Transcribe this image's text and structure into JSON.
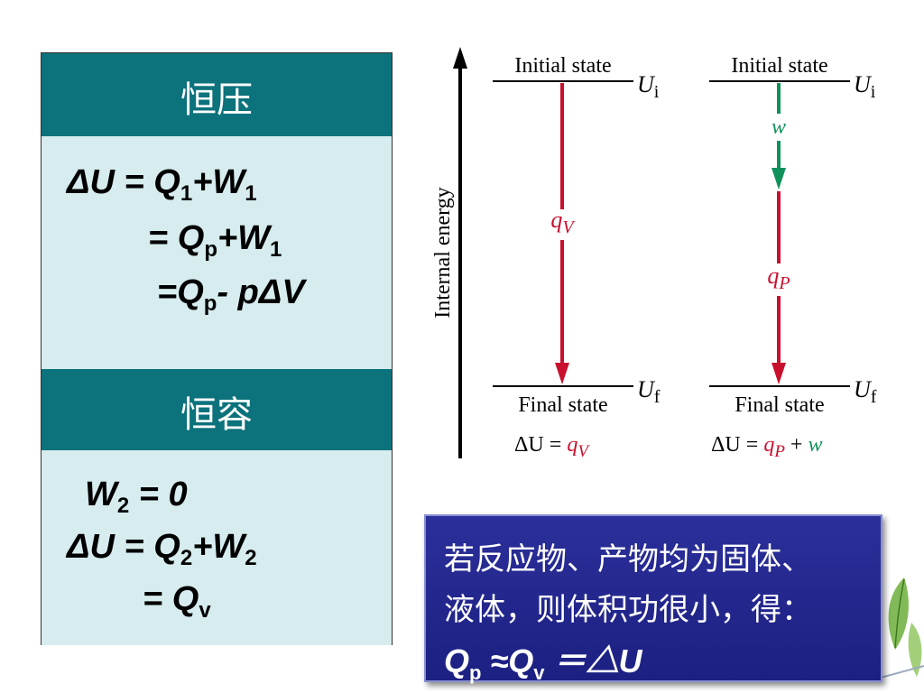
{
  "left_panel": {
    "header_1": "恒压",
    "header_2": "恒容",
    "eq1": {
      "l1_a": "ΔU = Q",
      "l1_s1": "1",
      "l1_b": "+W",
      "l1_s2": "1",
      "l2_a": "= Q",
      "l2_s1": "p",
      "l2_b": "+W",
      "l2_s2": "1",
      "l3_a": "=Q",
      "l3_s1": "p",
      "l3_b": "- pΔV"
    },
    "eq2": {
      "l1_a": "W",
      "l1_s1": "2",
      "l1_b": " = 0",
      "l2_a": "ΔU = Q",
      "l2_s1": "2",
      "l2_b": "+W",
      "l2_s2": "2",
      "l3_a": "= Q",
      "l3_s1": "v"
    }
  },
  "diagram": {
    "axis_label": "Internal energy",
    "left": {
      "initial": "Initial state",
      "final": "Final state",
      "ui": "U",
      "ui_sub": "i",
      "uf": "U",
      "uf_sub": "f",
      "q": "q",
      "q_sub": "V",
      "eq_a": "ΔU = ",
      "eq_q": "q",
      "eq_q_sub": "V"
    },
    "right": {
      "initial": "Initial state",
      "final": "Final state",
      "ui": "U",
      "ui_sub": "i",
      "uf": "U",
      "uf_sub": "f",
      "w": "w",
      "q": "q",
      "q_sub": "P",
      "eq_a": "ΔU = ",
      "eq_q": "q",
      "eq_q_sub": "P",
      "eq_plus": " + ",
      "eq_w": "w"
    },
    "colors": {
      "heat": "#c8102e",
      "work": "#10915a",
      "axis": "#000000"
    }
  },
  "note": {
    "line1": "若反应物、产物均为固体、",
    "line2": "液体，则体积功很小，得：",
    "l3_a": "Q",
    "l3_s1": "p",
    "l3_b": " ≈Q",
    "l3_s2": "v",
    "l3_c": " ＝△U",
    "bg": "#23288f"
  },
  "icons": {
    "decoration": "leaf-icon"
  }
}
